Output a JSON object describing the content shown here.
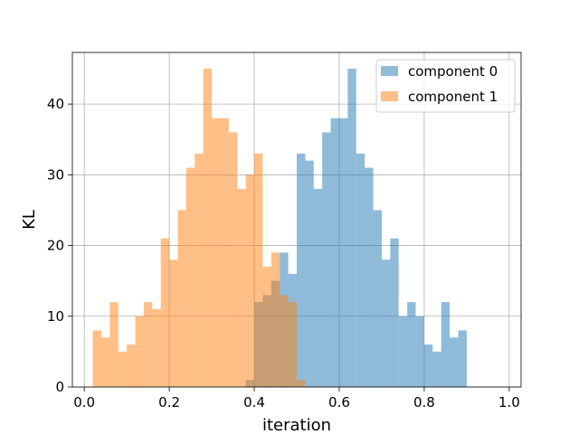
{
  "chart_data": {
    "type": "bar",
    "subtype": "overlapping-histogram",
    "xlabel": "iteration",
    "ylabel": "KL",
    "xlim": [
      -0.028,
      1.028
    ],
    "ylim": [
      0,
      47.3
    ],
    "xticks": [
      0.0,
      0.2,
      0.4,
      0.6,
      0.8,
      1.0
    ],
    "xtick_labels": [
      "0.0",
      "0.2",
      "0.4",
      "0.6",
      "0.8",
      "1.0"
    ],
    "yticks": [
      0,
      10,
      20,
      30,
      40
    ],
    "ytick_labels": [
      "0",
      "10",
      "20",
      "30",
      "40"
    ],
    "grid": true,
    "legend_position": "top-right",
    "series": [
      {
        "name": "component 0",
        "color": "#1f77b4",
        "alpha": 0.5,
        "bin_start": 0.38,
        "bin_width": 0.02,
        "values": [
          1,
          12,
          13,
          15,
          19,
          16,
          33,
          32,
          28,
          36,
          38,
          38,
          45,
          33,
          31,
          25,
          18,
          21,
          10,
          12,
          10,
          6,
          5,
          12,
          7,
          8
        ]
      },
      {
        "name": "component 1",
        "color": "#ff7f0e",
        "alpha": 0.5,
        "bin_start": 0.02,
        "bin_width": 0.02,
        "values": [
          8,
          7,
          12,
          5,
          6,
          10,
          12,
          11,
          21,
          18,
          25,
          31,
          33,
          45,
          38,
          38,
          36,
          28,
          30,
          33,
          17,
          19,
          13,
          12,
          1,
          0
        ]
      }
    ]
  }
}
